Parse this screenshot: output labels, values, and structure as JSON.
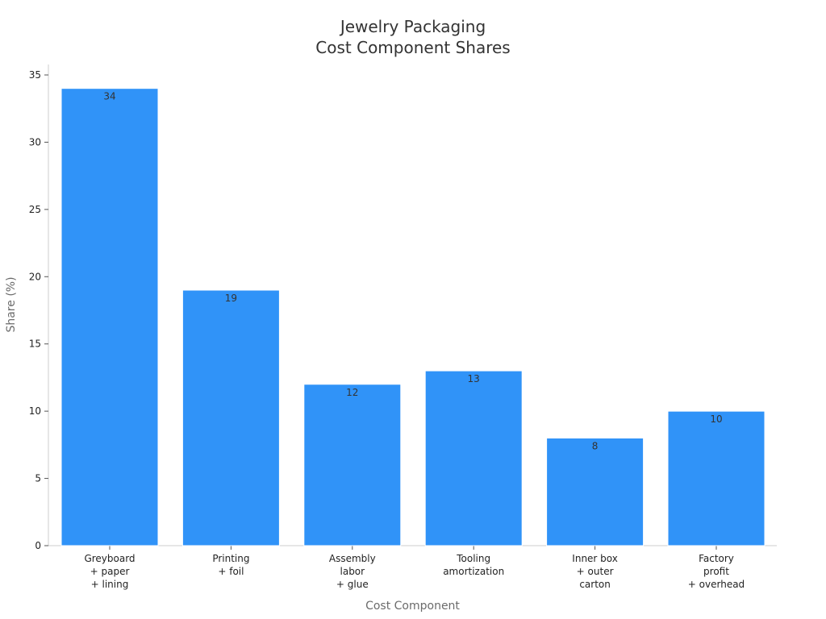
{
  "chart_data": {
    "type": "bar",
    "title": "Jewelry Packaging\nCost Component Shares",
    "xlabel": "Cost Component",
    "ylabel": "Share (%)",
    "categories": [
      "Greyboard\n+ paper\n+ lining",
      "Printing\n+ foil",
      "Assembly\nlabor\n+ glue",
      "Tooling\namortization",
      "Inner box\n+ outer\ncarton",
      "Factory\nprofit\n+ overhead"
    ],
    "values": [
      34,
      19,
      12,
      13,
      8,
      10
    ],
    "ylim": [
      0,
      35
    ],
    "yticks": [
      0,
      5,
      10,
      15,
      20,
      25,
      30,
      35
    ],
    "bar_color": "#3093f8",
    "grid": false,
    "legend": "none"
  }
}
